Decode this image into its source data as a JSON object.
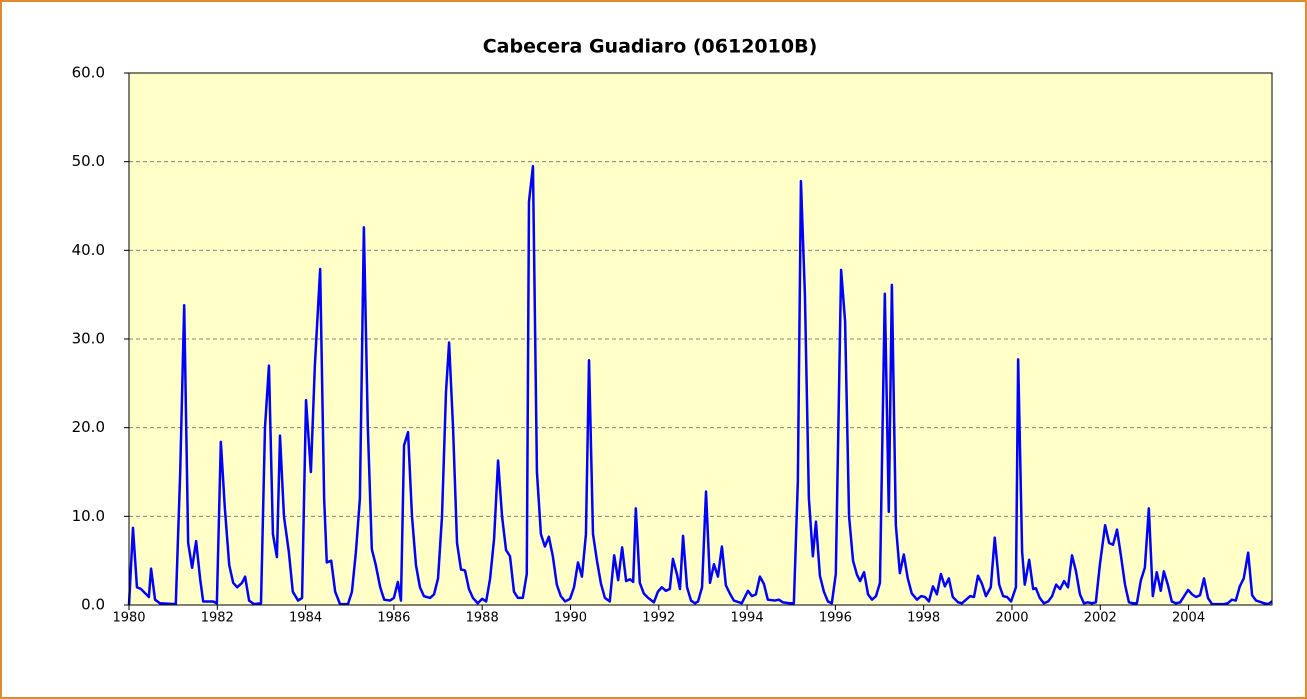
{
  "chart_data": {
    "type": "line",
    "title": "Cabecera Guadiaro (0612010B)",
    "xlim": [
      1980,
      2005.89
    ],
    "xticks": [
      1980,
      1982,
      1984,
      1986,
      1988,
      1990,
      1992,
      1994,
      1996,
      1998,
      2000,
      2002,
      2004
    ],
    "ylim": [
      0,
      60
    ],
    "yticks": [
      {
        "value": 0,
        "label": "0.0"
      },
      {
        "value": 10,
        "label": "10.0"
      },
      {
        "value": 20,
        "label": "20.0"
      },
      {
        "value": 30,
        "label": "30.0"
      },
      {
        "value": 40,
        "label": "40.0"
      },
      {
        "value": 50,
        "label": "50.0"
      },
      {
        "value": 60,
        "label": "60.0"
      }
    ],
    "grid": true,
    "color": "#0000ff",
    "x": [
      1980.0,
      1980.09,
      1980.18,
      1980.27,
      1980.45,
      1980.5,
      1980.59,
      1980.7,
      1981.06,
      1981.16,
      1981.25,
      1981.34,
      1981.43,
      1981.52,
      1981.61,
      1981.68,
      1981.9,
      1981.99,
      1982.08,
      1982.17,
      1982.27,
      1982.36,
      1982.45,
      1982.56,
      1982.63,
      1982.72,
      1982.83,
      1982.99,
      1983.08,
      1983.17,
      1983.26,
      1983.35,
      1983.42,
      1983.51,
      1983.62,
      1983.71,
      1983.83,
      1983.92,
      1984.01,
      1984.12,
      1984.21,
      1984.33,
      1984.42,
      1984.48,
      1984.58,
      1984.67,
      1984.78,
      1984.96,
      1985.05,
      1985.14,
      1985.23,
      1985.32,
      1985.41,
      1985.5,
      1985.59,
      1985.69,
      1985.78,
      1985.91,
      1986.0,
      1986.09,
      1986.16,
      1986.23,
      1986.32,
      1986.41,
      1986.5,
      1986.59,
      1986.68,
      1986.82,
      1986.91,
      1987.0,
      1987.09,
      1987.18,
      1987.25,
      1987.34,
      1987.43,
      1987.52,
      1987.61,
      1987.7,
      1987.79,
      1987.9,
      1988.0,
      1988.09,
      1988.18,
      1988.27,
      1988.36,
      1988.45,
      1988.54,
      1988.63,
      1988.72,
      1988.81,
      1988.92,
      1989.01,
      1989.06,
      1989.15,
      1989.24,
      1989.33,
      1989.42,
      1989.51,
      1989.6,
      1989.69,
      1989.78,
      1989.88,
      1989.99,
      1990.08,
      1990.17,
      1990.26,
      1990.35,
      1990.42,
      1990.51,
      1990.6,
      1990.69,
      1990.78,
      1990.89,
      1990.99,
      1991.08,
      1991.17,
      1991.26,
      1991.35,
      1991.42,
      1991.48,
      1991.57,
      1991.66,
      1991.76,
      1991.89,
      1991.98,
      1992.07,
      1992.16,
      1992.25,
      1992.32,
      1992.41,
      1992.48,
      1992.55,
      1992.64,
      1992.73,
      1992.82,
      1992.89,
      1992.98,
      1993.07,
      1993.16,
      1993.25,
      1993.34,
      1993.43,
      1993.52,
      1993.61,
      1993.7,
      1993.88,
      1994.02,
      1994.11,
      1994.2,
      1994.29,
      1994.38,
      1994.47,
      1994.63,
      1994.72,
      1994.81,
      1994.97,
      1995.06,
      1995.15,
      1995.22,
      1995.31,
      1995.4,
      1995.49,
      1995.56,
      1995.65,
      1995.74,
      1995.83,
      1995.92,
      1996.01,
      1996.13,
      1996.22,
      1996.31,
      1996.4,
      1996.49,
      1996.56,
      1996.65,
      1996.74,
      1996.83,
      1996.92,
      1997.01,
      1997.12,
      1997.21,
      1997.28,
      1997.37,
      1997.46,
      1997.55,
      1997.64,
      1997.73,
      1997.85,
      1997.94,
      1998.03,
      1998.12,
      1998.21,
      1998.3,
      1998.39,
      1998.48,
      1998.57,
      1998.66,
      1998.78,
      1998.87,
      1998.96,
      1999.05,
      1999.14,
      1999.23,
      1999.32,
      1999.41,
      1999.52,
      1999.61,
      1999.71,
      1999.8,
      1999.89,
      1999.98,
      2000.09,
      2000.14,
      2000.23,
      2000.29,
      2000.39,
      2000.48,
      2000.54,
      2000.63,
      2000.72,
      2000.82,
      2000.91,
      2001.0,
      2001.09,
      2001.18,
      2001.27,
      2001.36,
      2001.45,
      2001.54,
      2001.63,
      2001.72,
      2001.81,
      2001.9,
      2001.99,
      2002.11,
      2002.2,
      2002.29,
      2002.38,
      2002.47,
      2002.56,
      2002.65,
      2002.74,
      2002.83,
      2002.92,
      2003.01,
      2003.1,
      2003.19,
      2003.28,
      2003.37,
      2003.44,
      2003.53,
      2003.62,
      2003.71,
      2003.81,
      2003.9,
      2003.99,
      2004.08,
      2004.17,
      2004.26,
      2004.35,
      2004.44,
      2004.53,
      2004.8,
      2004.89,
      2004.98,
      2005.07,
      2005.16,
      2005.25,
      2005.35,
      2005.44,
      2005.53,
      2005.71,
      2005.8,
      2005.89
    ],
    "values": [
      0,
      8.7,
      2,
      1.8,
      0.9,
      4.1,
      0.6,
      0.2,
      0.1,
      15,
      33.8,
      7,
      4.2,
      7.2,
      3,
      0.4,
      0.4,
      0.2,
      18.4,
      11,
      4.5,
      2.5,
      2,
      2.5,
      3.2,
      0.5,
      0.1,
      0.2,
      20,
      27,
      8,
      5.4,
      19.1,
      10,
      6,
      1.5,
      0.5,
      0.8,
      23.1,
      15,
      27,
      37.9,
      12,
      4.8,
      5,
      1.5,
      0.1,
      0.1,
      1.5,
      6,
      12,
      42.6,
      20,
      6.3,
      4.5,
      2,
      0.6,
      0.5,
      0.8,
      2.6,
      0.5,
      18,
      19.5,
      10,
      4.5,
      2,
      1,
      0.8,
      1.2,
      3,
      10,
      24,
      29.6,
      20,
      7,
      4,
      3.9,
      1.8,
      0.8,
      0.2,
      0.7,
      0.4,
      3,
      7.5,
      16.3,
      10,
      6.2,
      5.5,
      1.5,
      0.8,
      0.8,
      3.5,
      45.5,
      49.5,
      15,
      8,
      6.6,
      7.7,
      5.5,
      2.3,
      1,
      0.4,
      0.7,
      2,
      4.8,
      3.2,
      8,
      27.6,
      8,
      5,
      2.4,
      0.8,
      0.4,
      5.6,
      2.8,
      6.5,
      2.7,
      2.9,
      2.6,
      10.9,
      2.5,
      1.3,
      0.8,
      0.3,
      1.5,
      2,
      1.6,
      1.8,
      5.2,
      3.5,
      1.8,
      7.8,
      2,
      0.5,
      0.2,
      0.4,
      2,
      12.8,
      2.5,
      4.6,
      3.2,
      6.6,
      2.2,
      1.3,
      0.5,
      0.2,
      1.6,
      1,
      1.2,
      3.2,
      2.4,
      0.6,
      0.5,
      0.6,
      0.3,
      0.2,
      0.2,
      14,
      47.8,
      35,
      12,
      5.5,
      9.4,
      3.3,
      1.5,
      0.4,
      0.2,
      3.5,
      37.8,
      32,
      10,
      5,
      3.4,
      2.7,
      3.7,
      1.2,
      0.6,
      1,
      2.5,
      35.1,
      10.5,
      36.1,
      9,
      3.6,
      5.7,
      3,
      1.3,
      0.6,
      1,
      0.9,
      0.4,
      2.1,
      1.2,
      3.5,
      2.1,
      3,
      0.9,
      0.3,
      0.2,
      0.6,
      1,
      0.9,
      3.3,
      2.4,
      1,
      2,
      7.6,
      2.3,
      1,
      0.9,
      0.4,
      2,
      27.7,
      6,
      2.3,
      5.1,
      1.8,
      1.9,
      0.8,
      0.2,
      0.4,
      1,
      2.3,
      1.8,
      2.7,
      2,
      5.6,
      3.8,
      1.2,
      0.2,
      0.3,
      0.2,
      0.3,
      4.5,
      9,
      7,
      6.8,
      8.5,
      5.5,
      2.3,
      0.3,
      0.2,
      0.2,
      2.8,
      4.2,
      10.9,
      1,
      3.7,
      1.6,
      3.8,
      2.3,
      0.4,
      0.2,
      0.3,
      1,
      1.7,
      1.2,
      0.9,
      1.1,
      3,
      0.8,
      0.1,
      0.1,
      0.2,
      0.6,
      0.5,
      2.1,
      3,
      5.9,
      1.1,
      0.5,
      0.2,
      0.1,
      0.4
    ]
  }
}
